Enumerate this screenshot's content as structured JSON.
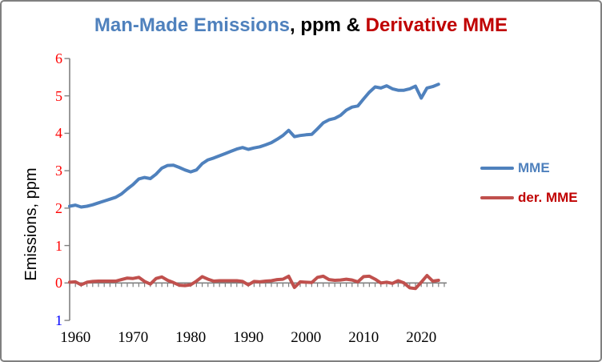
{
  "window": {
    "background": "#FFFFFF",
    "border_color": "#808080"
  },
  "title": {
    "part_blue": "Man-Made Emissions",
    "part_black": ", ppm & ",
    "part_red": "Derivative MME"
  },
  "y_axis": {
    "title": "Emissions, ppm",
    "tick_label_color_positive": "#FF0000",
    "tick_label_color_negative": "#0000FF"
  },
  "legend": {
    "items": [
      {
        "label": "MME",
        "text_color": "#4F81BD",
        "line_color": "#4F81BD"
      },
      {
        "label": "der. MME",
        "text_color": "#C00000",
        "line_color": "#C0504D"
      }
    ]
  },
  "chart_data": {
    "type": "line",
    "title": "Man-Made Emissions, ppm & Derivative MME",
    "xlabel": "",
    "ylabel": "Emissions, ppm",
    "ylim": [
      -1,
      6
    ],
    "xlim": [
      1959,
      2024
    ],
    "grid": false,
    "legend_position": "right",
    "axis_color": "#808080",
    "y_ticks": [
      {
        "value": 6,
        "label": "6",
        "color": "#FF0000"
      },
      {
        "value": 5,
        "label": "5",
        "color": "#FF0000"
      },
      {
        "value": 4,
        "label": "4",
        "color": "#FF0000"
      },
      {
        "value": 3,
        "label": "3",
        "color": "#FF0000"
      },
      {
        "value": 2,
        "label": "2",
        "color": "#FF0000"
      },
      {
        "value": 1,
        "label": "1",
        "color": "#FF0000"
      },
      {
        "value": 0,
        "label": "0",
        "color": "#FF0000"
      },
      {
        "value": -1,
        "label": "1",
        "color": "#0000FF"
      }
    ],
    "x_tick_labels": [
      1960,
      1970,
      1980,
      1990,
      2000,
      2010,
      2020
    ],
    "minor_x_ticks_every_year": true,
    "x": [
      1959,
      1960,
      1961,
      1962,
      1963,
      1964,
      1965,
      1966,
      1967,
      1968,
      1969,
      1970,
      1971,
      1972,
      1973,
      1974,
      1975,
      1976,
      1977,
      1978,
      1979,
      1980,
      1981,
      1982,
      1983,
      1984,
      1985,
      1986,
      1987,
      1988,
      1989,
      1990,
      1991,
      1992,
      1993,
      1994,
      1995,
      1996,
      1997,
      1998,
      1999,
      2000,
      2001,
      2002,
      2003,
      2004,
      2005,
      2006,
      2007,
      2008,
      2009,
      2010,
      2011,
      2012,
      2013,
      2014,
      2015,
      2016,
      2017,
      2018,
      2019,
      2020,
      2021,
      2022,
      2023
    ],
    "series": [
      {
        "name": "MME",
        "color": "#4F81BD",
        "values": [
          2.05,
          2.08,
          2.03,
          2.05,
          2.09,
          2.14,
          2.19,
          2.24,
          2.29,
          2.38,
          2.51,
          2.63,
          2.78,
          2.82,
          2.79,
          2.91,
          3.07,
          3.14,
          3.15,
          3.09,
          3.02,
          2.97,
          3.02,
          3.19,
          3.29,
          3.34,
          3.4,
          3.46,
          3.52,
          3.58,
          3.62,
          3.57,
          3.61,
          3.64,
          3.69,
          3.75,
          3.84,
          3.94,
          4.08,
          3.91,
          3.94,
          3.96,
          3.97,
          4.12,
          4.28,
          4.36,
          4.4,
          4.48,
          4.62,
          4.7,
          4.73,
          4.92,
          5.1,
          5.24,
          5.21,
          5.27,
          5.19,
          5.15,
          5.15,
          5.19,
          5.26,
          4.94,
          5.21,
          5.25,
          5.31
        ]
      },
      {
        "name": "der. MME",
        "color": "#C0504D",
        "values": [
          0.02,
          0.03,
          -0.05,
          0.02,
          0.04,
          0.05,
          0.05,
          0.05,
          0.05,
          0.09,
          0.13,
          0.12,
          0.15,
          0.04,
          -0.03,
          0.12,
          0.16,
          0.07,
          0.01,
          -0.06,
          -0.07,
          -0.05,
          0.05,
          0.17,
          0.1,
          0.05,
          0.06,
          0.06,
          0.06,
          0.06,
          0.04,
          -0.05,
          0.04,
          0.03,
          0.05,
          0.06,
          0.09,
          0.1,
          0.18,
          -0.12,
          0.03,
          0.02,
          0.01,
          0.15,
          0.18,
          0.09,
          0.07,
          0.08,
          0.1,
          0.08,
          0.03,
          0.17,
          0.18,
          0.1,
          0.0,
          0.02,
          -0.01,
          0.06,
          0.0,
          -0.13,
          -0.15,
          0.02,
          0.2,
          0.05,
          0.07
        ]
      }
    ]
  }
}
